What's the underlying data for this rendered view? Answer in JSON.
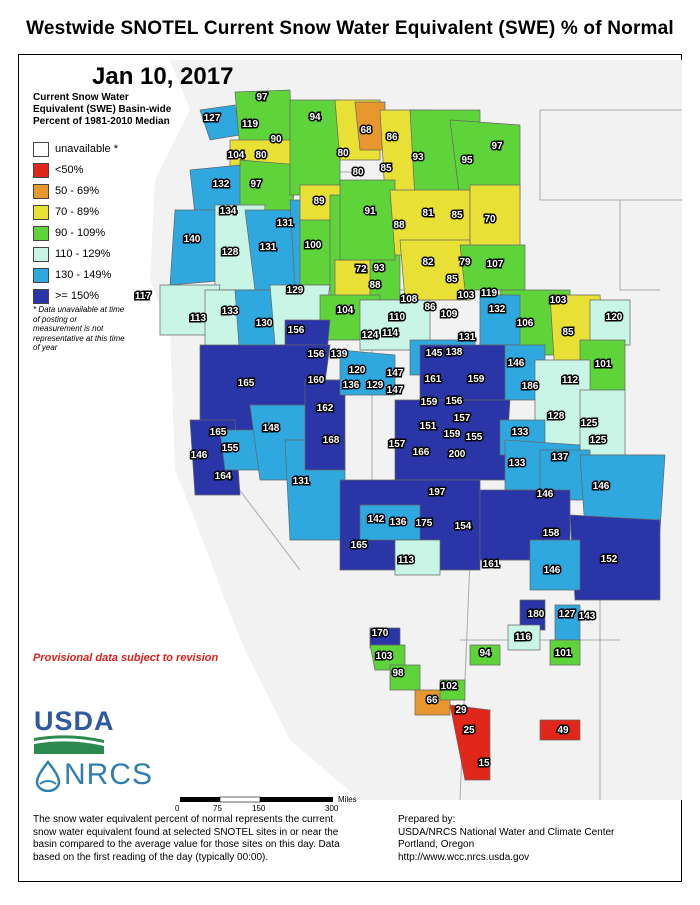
{
  "title": "Westwide SNOTEL Current Snow Water Equivalent (SWE) % of Normal",
  "date": "Jan 10, 2017",
  "legend": {
    "title": "Current Snow Water Equivalent (SWE) Basin-wide Percent of 1981-2010 Median",
    "items": [
      {
        "label": "unavailable *",
        "color": "#ffffff"
      },
      {
        "label": "<50%",
        "color": "#e1261c"
      },
      {
        "label": "50 - 69%",
        "color": "#e8962e"
      },
      {
        "label": "70 - 89%",
        "color": "#e8e035"
      },
      {
        "label": "90 - 109%",
        "color": "#5fd33a"
      },
      {
        "label": "110 - 129%",
        "color": "#c9f5e6"
      },
      {
        "label": "130 - 149%",
        "color": "#2fa8df"
      },
      {
        "label": ">= 150%",
        "color": "#2a35a8"
      }
    ],
    "note": "Data unavailable at time of posting or measurement is not representative at this time of year",
    "note_marker": "*"
  },
  "provisional": "Provisional data subject to revision",
  "logos": {
    "usda": "USDA",
    "nrcs": "NRCS"
  },
  "scale": {
    "ticks": [
      "0",
      "75",
      "150",
      "300"
    ],
    "unit": "Miles"
  },
  "footer_left": "The snow water equivalent percent of normal represents the current snow water equivalent found at selected SNOTEL sites in or near the basin compared to the average value for those sites on this day. Data based on the first reading of the day (typically 00:00).",
  "footer_right": {
    "line1": "Prepared by:",
    "line2": "USDA/NRCS National Water and Climate Center",
    "line3": "Portland, Oregon",
    "line4": "http://www.wcc.nrcs.usda.gov"
  },
  "basins": [
    {
      "value": "127"
    },
    {
      "value": "97"
    },
    {
      "value": "119"
    },
    {
      "value": "94"
    },
    {
      "value": "68"
    },
    {
      "value": "86"
    },
    {
      "value": "97"
    },
    {
      "value": "90"
    },
    {
      "value": "104"
    },
    {
      "value": "80"
    },
    {
      "value": "80"
    },
    {
      "value": "80"
    },
    {
      "value": "85"
    },
    {
      "value": "93"
    },
    {
      "value": "95"
    },
    {
      "value": "132"
    },
    {
      "value": "97"
    },
    {
      "value": "89"
    },
    {
      "value": "134"
    },
    {
      "value": "91"
    },
    {
      "value": "81"
    },
    {
      "value": "85"
    },
    {
      "value": "70"
    },
    {
      "value": "131"
    },
    {
      "value": "88"
    },
    {
      "value": "140"
    },
    {
      "value": "128"
    },
    {
      "value": "131"
    },
    {
      "value": "100"
    },
    {
      "value": "82"
    },
    {
      "value": "79"
    },
    {
      "value": "107"
    },
    {
      "value": "93"
    },
    {
      "value": "72"
    },
    {
      "value": "85"
    },
    {
      "value": "88"
    },
    {
      "value": "117"
    },
    {
      "value": "129"
    },
    {
      "value": "103"
    },
    {
      "value": "119"
    },
    {
      "value": "103"
    },
    {
      "value": "108"
    },
    {
      "value": "132"
    },
    {
      "value": "113"
    },
    {
      "value": "133"
    },
    {
      "value": "104"
    },
    {
      "value": "86"
    },
    {
      "value": "110"
    },
    {
      "value": "109"
    },
    {
      "value": "85"
    },
    {
      "value": "120"
    },
    {
      "value": "130"
    },
    {
      "value": "156"
    },
    {
      "value": "124"
    },
    {
      "value": "114"
    },
    {
      "value": "106"
    },
    {
      "value": "131"
    },
    {
      "value": "101"
    },
    {
      "value": "156"
    },
    {
      "value": "139"
    },
    {
      "value": "145"
    },
    {
      "value": "138"
    },
    {
      "value": "146"
    },
    {
      "value": "165"
    },
    {
      "value": "160"
    },
    {
      "value": "120"
    },
    {
      "value": "147"
    },
    {
      "value": "161"
    },
    {
      "value": "159"
    },
    {
      "value": "186"
    },
    {
      "value": "112"
    },
    {
      "value": "136"
    },
    {
      "value": "129"
    },
    {
      "value": "147"
    },
    {
      "value": "162"
    },
    {
      "value": "159"
    },
    {
      "value": "156"
    },
    {
      "value": "128"
    },
    {
      "value": "157"
    },
    {
      "value": "125"
    },
    {
      "value": "148"
    },
    {
      "value": "151"
    },
    {
      "value": "165"
    },
    {
      "value": "168"
    },
    {
      "value": "159"
    },
    {
      "value": "155"
    },
    {
      "value": "133"
    },
    {
      "value": "125"
    },
    {
      "value": "155"
    },
    {
      "value": "157"
    },
    {
      "value": "146"
    },
    {
      "value": "166"
    },
    {
      "value": "200"
    },
    {
      "value": "137"
    },
    {
      "value": "133"
    },
    {
      "value": "164"
    },
    {
      "value": "131"
    },
    {
      "value": "146"
    },
    {
      "value": "146"
    },
    {
      "value": "197"
    },
    {
      "value": "142"
    },
    {
      "value": "136"
    },
    {
      "value": "175"
    },
    {
      "value": "154"
    },
    {
      "value": "158"
    },
    {
      "value": "152"
    },
    {
      "value": "165"
    },
    {
      "value": "113"
    },
    {
      "value": "161"
    },
    {
      "value": "146"
    },
    {
      "value": "180"
    },
    {
      "value": "127"
    },
    {
      "value": "143"
    },
    {
      "value": "116"
    },
    {
      "value": "170"
    },
    {
      "value": "94"
    },
    {
      "value": "101"
    },
    {
      "value": "103"
    },
    {
      "value": "98"
    },
    {
      "value": "102"
    },
    {
      "value": "66"
    },
    {
      "value": "29"
    },
    {
      "value": "25"
    },
    {
      "value": "49"
    },
    {
      "value": "15"
    }
  ]
}
